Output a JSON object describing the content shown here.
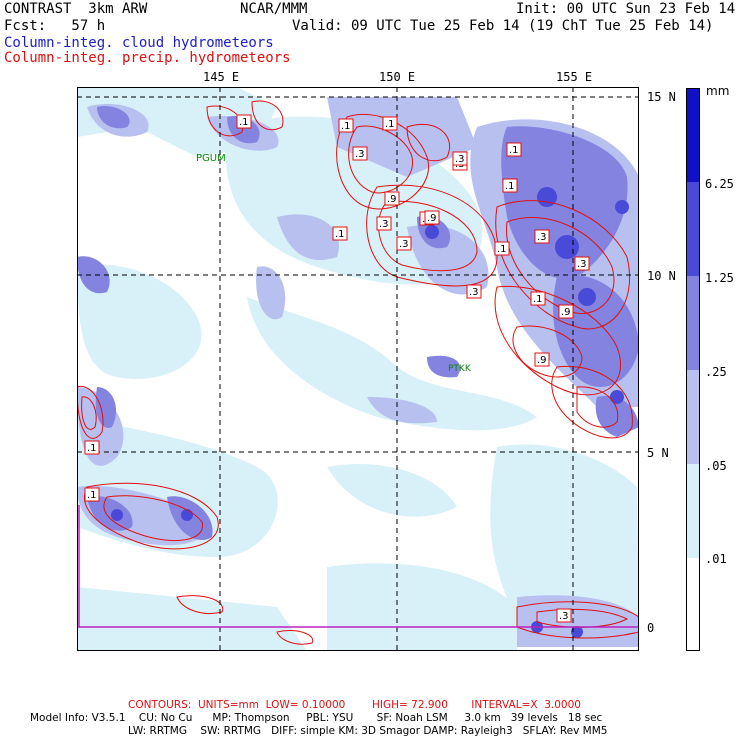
{
  "header": {
    "model": "CONTRAST  3km ARW",
    "center": "NCAR/MMM",
    "init": "Init: 00 UTC Sun 23 Feb 14",
    "fcst": "Fcst:   57 h",
    "valid": "Valid: 09 UTC Tue 25 Feb 14 (19 ChT Tue 25 Feb 14)",
    "line_blue": "Column-integ. cloud hydrometeors",
    "line_red": "Column-integ. precip. hydrometeors"
  },
  "map": {
    "lon_labels": [
      "145 E",
      "150 E",
      "155 E"
    ],
    "lat_labels": [
      "15 N",
      "10 N",
      "5 N",
      "0"
    ],
    "stations": [
      "PGUM",
      "PTKK"
    ],
    "contour_labels": [
      ".1",
      ".1",
      ".1",
      ".3",
      ".3",
      ".9",
      ".1",
      ".3",
      ".9",
      ".3",
      ".1",
      ".3",
      ".1",
      ".3",
      ".9",
      ".1",
      ".3",
      ".1",
      ".3",
      ".9",
      ".9",
      ".1",
      ".1",
      ".3"
    ]
  },
  "colorbar": {
    "unit": "mm",
    "labels": [
      "6.25",
      "1.25",
      ".25",
      ".05",
      ".01"
    ],
    "colors": [
      "#1010c8",
      "#4a4ad8",
      "#8484e0",
      "#b8c0f0",
      "#d8f0f8",
      "#ffffff"
    ]
  },
  "footer": {
    "contours": "CONTOURS:  UNITS=mm  LOW= 0.10000        HIGH= 72.900       INTERVAL=X  3.0000",
    "model_info": "Model Info: V3.5.1    CU: No Cu      MP: Thompson     PBL: YSU       SF: Noah LSM     3.0 km   39 levels   18 sec",
    "model_info2": "LW: RRTMG    SW: RRTMG   DIFF: simple KM: 3D Smagor DAMP: Rayleigh3   SFLAY: Rev MM5"
  },
  "colors": {
    "contour": "#e01010",
    "cloud": "#1c1cc8",
    "station": "#0a8a0a"
  }
}
